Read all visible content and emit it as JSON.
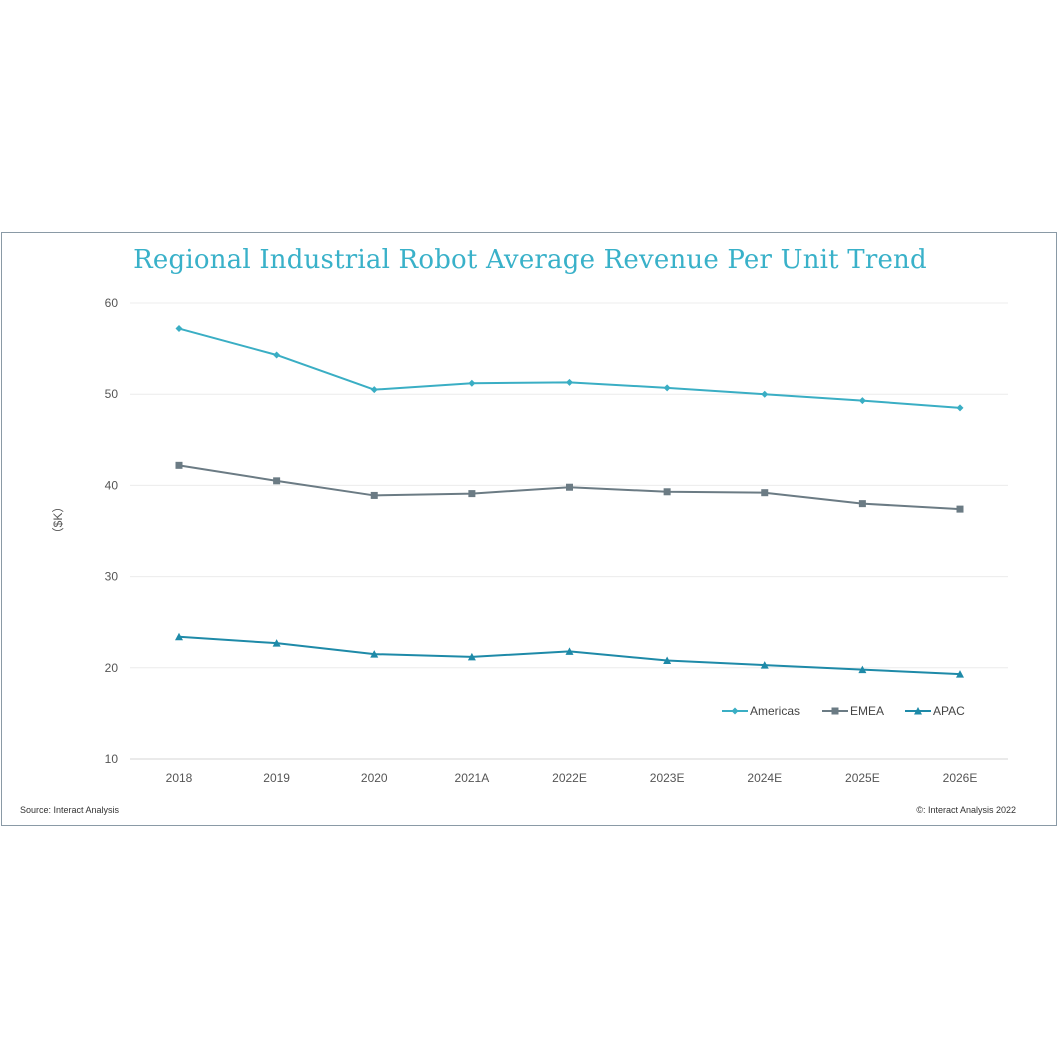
{
  "chart_data": {
    "type": "line",
    "title": "Regional Industrial Robot Average Revenue Per Unit Trend",
    "xlabel": "",
    "ylabel": "（$K）",
    "ylim": [
      10,
      60
    ],
    "yticks": [
      10,
      20,
      30,
      40,
      50,
      60
    ],
    "grid": true,
    "legend_position": "bottom-right",
    "categories": [
      "2018",
      "2019",
      "2020",
      "2021A",
      "2022E",
      "2023E",
      "2024E",
      "2025E",
      "2026E"
    ],
    "series": [
      {
        "name": "Americas",
        "color": "#3aaec4",
        "marker": "diamond",
        "values": [
          57.2,
          54.3,
          50.5,
          51.2,
          51.3,
          50.7,
          50.0,
          49.3,
          48.5
        ]
      },
      {
        "name": "EMEA",
        "color": "#6b7b84",
        "marker": "square",
        "values": [
          42.2,
          40.5,
          38.9,
          39.1,
          39.8,
          39.3,
          39.2,
          38.0,
          37.4
        ]
      },
      {
        "name": "APAC",
        "color": "#1e8aa8",
        "marker": "triangle",
        "values": [
          23.4,
          22.7,
          21.5,
          21.2,
          21.8,
          20.8,
          20.3,
          19.8,
          19.3
        ]
      }
    ]
  },
  "title_color": "#39b1c9",
  "footer": {
    "source": "Source: Interact Analysis",
    "copyright": "©: Interact Analysis 2022"
  }
}
